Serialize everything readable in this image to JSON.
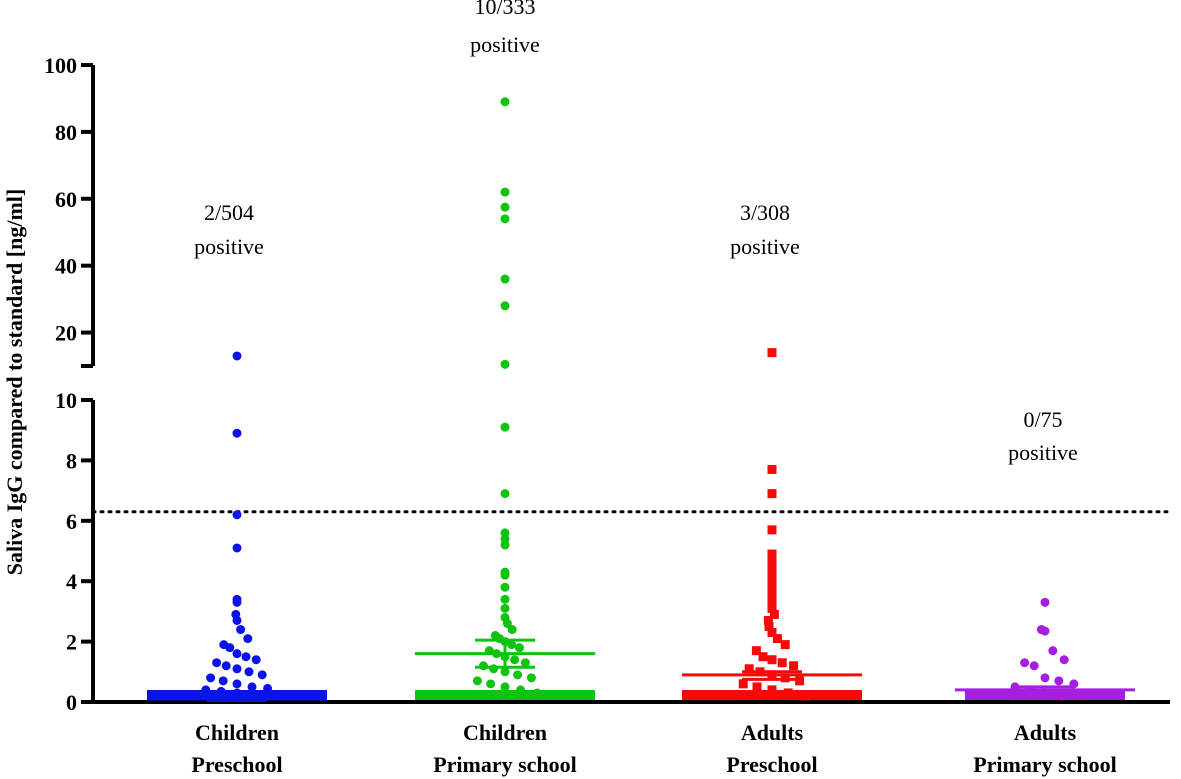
{
  "chart_data": {
    "type": "scatter",
    "subtype": "column scatter with mean and error bars, broken y-axis",
    "ylabel": "Saliva IgG compared to standard [ng/ml]",
    "xlabel": "",
    "lower_axis": {
      "range": [
        0,
        10
      ],
      "ticks": [
        "0",
        "2",
        "4",
        "6",
        "8",
        "10"
      ],
      "tick_values": [
        0,
        2,
        4,
        6,
        8,
        10
      ]
    },
    "upper_axis": {
      "range": [
        10,
        100
      ],
      "ticks": [
        "20",
        "40",
        "60",
        "80",
        "100"
      ],
      "tick_values": [
        20,
        40,
        60,
        80,
        100
      ]
    },
    "cutoff": 6.3,
    "groups": [
      {
        "line1": "Children",
        "line2": "Preschool",
        "annotation1": "2/504",
        "annotation2": "positive",
        "color": "#0a14e6",
        "marker": "circle",
        "mean": 0.1,
        "error_low": 0.05,
        "error_high": 0.2,
        "points": [
          13,
          8.9,
          6.2,
          5.1,
          3.4,
          3.3,
          2.9,
          2.7,
          2.4,
          2.1,
          1.9,
          1.8,
          1.6,
          1.5,
          1.4,
          1.3,
          1.2,
          1.1,
          1.0,
          0.9,
          0.8,
          0.7,
          0.6,
          0.5,
          0.45,
          0.4,
          0.35,
          0.3,
          0.25
        ]
      },
      {
        "line1": "Children",
        "line2": "Primary school",
        "annotation1": "10/333",
        "annotation2": "positive",
        "color": "#0fc40f",
        "marker": "circle",
        "mean": 1.6,
        "error_low": 1.15,
        "error_high": 2.05,
        "points": [
          89,
          62,
          57.5,
          54,
          36,
          28,
          10.5,
          9.1,
          6.9,
          5.6,
          5.4,
          5.2,
          4.3,
          4.2,
          3.8,
          3.4,
          3.1,
          2.8,
          2.6,
          2.4,
          2.2,
          2.1,
          2.0,
          1.9,
          1.8,
          1.7,
          1.6,
          1.5,
          1.4,
          1.3,
          1.2,
          1.1,
          1.0,
          0.9,
          0.8,
          0.7,
          0.6,
          0.5,
          0.4,
          0.3
        ]
      },
      {
        "line1": "Adults",
        "line2": "Preschool",
        "annotation1": "3/308",
        "annotation2": "positive",
        "color": "#f50a0a",
        "marker": "square",
        "mean": 0.9,
        "error_low": 0.75,
        "error_high": 1.0,
        "points": [
          14,
          7.7,
          6.9,
          5.7,
          4.9,
          4.7,
          4.5,
          4.3,
          4.1,
          3.9,
          3.7,
          3.5,
          3.3,
          3.1,
          2.9,
          2.7,
          2.5,
          2.3,
          2.1,
          1.9,
          1.7,
          1.5,
          1.4,
          1.3,
          1.2,
          1.1,
          1.0,
          0.9,
          0.8,
          0.7,
          0.6,
          0.5,
          0.4,
          0.3,
          0.2
        ]
      },
      {
        "line1": "Adults",
        "line2": "Primary school",
        "annotation1": "0/75",
        "annotation2": "positive",
        "color": "#a61fe0",
        "marker": "circle",
        "mean": 0.4,
        "error_low": 0.3,
        "error_high": 0.5,
        "points": [
          3.3,
          2.4,
          2.35,
          1.7,
          1.4,
          1.3,
          1.2,
          0.8,
          0.7,
          0.6,
          0.5,
          0.4,
          0.3,
          0.2
        ]
      }
    ]
  }
}
